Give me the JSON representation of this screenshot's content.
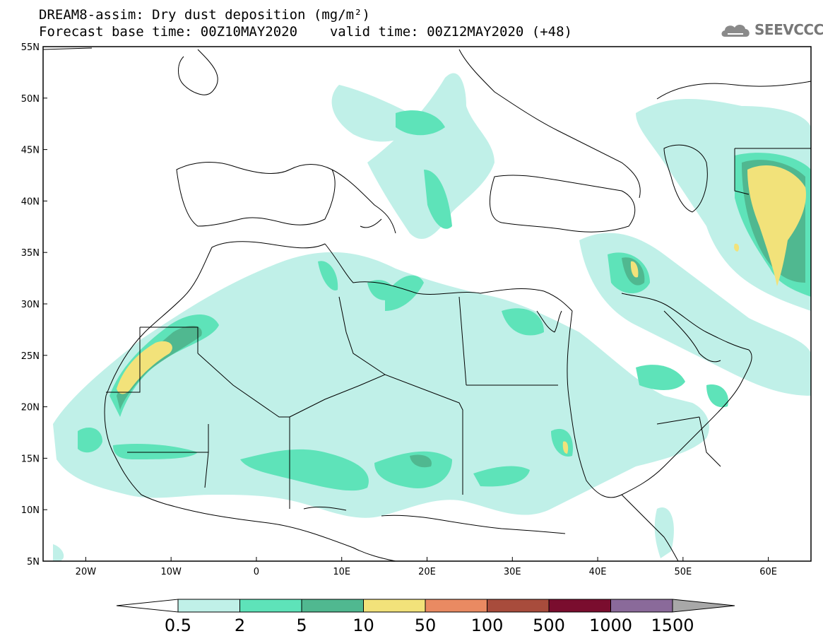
{
  "map": {
    "title": "DREAM8-assim: Dry dust deposition (mg/m²)",
    "forecast_base_label": "Forecast base time: 00Z10MAY2020",
    "valid_time_label": "valid time: 00Z12MAY2020 (+48)",
    "logo_text": "SEEVCCC",
    "logo_icon": "cloud-logo-icon",
    "lat_labels": [
      "55N",
      "50N",
      "45N",
      "40N",
      "35N",
      "30N",
      "25N",
      "20N",
      "15N",
      "10N",
      "5N"
    ],
    "lat_values": [
      55,
      50,
      45,
      40,
      35,
      30,
      25,
      20,
      15,
      10,
      5
    ],
    "lon_labels": [
      "20W",
      "10W",
      "0",
      "10E",
      "20E",
      "30E",
      "40E",
      "50E",
      "60E"
    ],
    "lon_values": [
      -20,
      -10,
      0,
      10,
      20,
      30,
      40,
      50,
      60
    ],
    "lon_range": [
      -25,
      65
    ],
    "lat_range": [
      5,
      55
    ]
  },
  "colorbar": {
    "labels": [
      "0.5",
      "2",
      "5",
      "10",
      "50",
      "100",
      "500",
      "1000",
      "1500"
    ],
    "colors": [
      "#c0f0e8",
      "#5ee3b9",
      "#50b890",
      "#f2e27a",
      "#e98a62",
      "#a84c3c",
      "#7a0d2e",
      "#8a6a9a",
      "#a8a8a8"
    ]
  }
}
